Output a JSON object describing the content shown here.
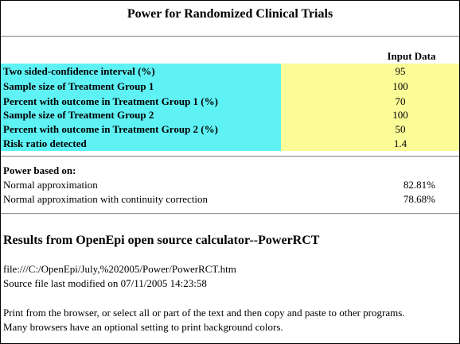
{
  "title": "Power for Randomized Clinical Trials",
  "input_header": "Input Data",
  "inputs": [
    {
      "label": "Two sided-confidence interval (%)",
      "value": "95"
    },
    {
      "label": "Sample size of Treatment Group 1",
      "value": "100"
    },
    {
      "label": "Percent with outcome in Treatment Group 1 (%)",
      "value": "70"
    },
    {
      "label": "Sample size of Treatment Group 2",
      "value": "100"
    },
    {
      "label": "Percent with outcome in Treatment Group 2 (%)",
      "value": "50"
    },
    {
      "label": "Risk ratio detected",
      "value": "1.4"
    }
  ],
  "power": {
    "heading": "Power based on:",
    "rows": [
      {
        "label": "Normal approximation",
        "value": "82.81%"
      },
      {
        "label": "Normal approximation with continuity correction",
        "value": "78.68%"
      }
    ]
  },
  "results": {
    "heading": "Results from OpenEpi open source calculator--PowerRCT",
    "file_path": "file:///C:/OpenEpi/July,%202005/Power/PowerRCT.htm",
    "modified": "Source file last modified on 07/11/2005 14:23:58",
    "print_note_1": "Print from the browser, or select all or part of the text and then copy and paste to other programs.",
    "print_note_2": "Many browsers have an optional setting to print background colors."
  }
}
